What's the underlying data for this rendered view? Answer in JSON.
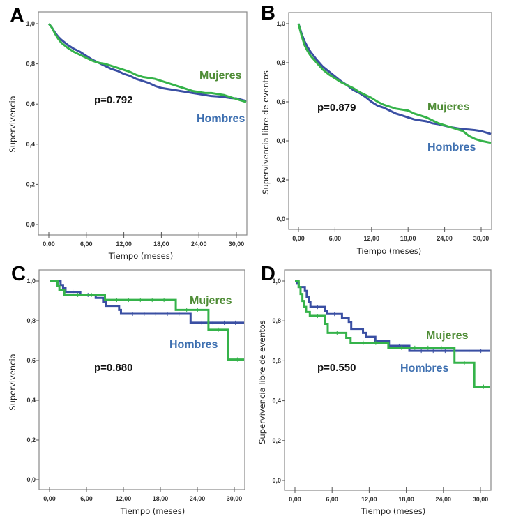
{
  "colors": {
    "hombres_line": "#3a4fa3",
    "mujeres_line": "#35b34a",
    "hombres_label": "#3d6fb0",
    "mujeres_label": "#4e8c35"
  },
  "chart_data": [
    {
      "panel": "A",
      "type": "line",
      "xlabel": "Tiempo (meses)",
      "ylabel": "Supervivencia",
      "xlim": [
        -1.5,
        32
      ],
      "ylim": [
        0,
        1.0
      ],
      "xticks": [
        "0,00",
        "6,00",
        "12,00",
        "18,00",
        "24,00",
        "30,00"
      ],
      "xtick_values": [
        0,
        6,
        12,
        18,
        24,
        30
      ],
      "yticks": [
        "0,0",
        "0,2",
        "0,4",
        "0,6",
        "0,8",
        "1,0"
      ],
      "ytick_values": [
        0,
        0.2,
        0.4,
        0.6,
        0.8,
        1.0
      ],
      "annotation": "p=0.792",
      "step": false,
      "series": [
        {
          "name": "Hombres",
          "x": [
            0,
            0.5,
            1,
            1.5,
            2,
            3,
            4,
            5,
            6,
            7,
            8,
            9,
            10,
            11,
            12,
            13,
            14,
            15,
            16,
            17,
            18,
            19,
            20,
            21,
            22,
            23,
            24,
            25,
            26,
            27,
            28,
            29,
            30,
            32
          ],
          "y": [
            1.0,
            0.98,
            0.955,
            0.935,
            0.92,
            0.895,
            0.875,
            0.86,
            0.84,
            0.82,
            0.805,
            0.79,
            0.775,
            0.765,
            0.75,
            0.74,
            0.725,
            0.715,
            0.705,
            0.69,
            0.68,
            0.675,
            0.67,
            0.665,
            0.66,
            0.655,
            0.65,
            0.645,
            0.64,
            0.638,
            0.635,
            0.63,
            0.628,
            0.615
          ]
        },
        {
          "name": "Mujeres",
          "x": [
            0,
            0.5,
            1,
            1.5,
            2,
            3,
            4,
            5,
            6,
            7,
            8,
            9,
            10,
            11,
            12,
            13,
            14,
            15,
            16,
            17,
            18,
            19,
            20,
            21,
            22,
            23,
            24,
            25,
            26,
            27,
            28,
            29,
            30,
            32
          ],
          "y": [
            1.0,
            0.98,
            0.95,
            0.925,
            0.905,
            0.88,
            0.86,
            0.845,
            0.83,
            0.815,
            0.805,
            0.8,
            0.79,
            0.78,
            0.77,
            0.76,
            0.745,
            0.735,
            0.73,
            0.725,
            0.715,
            0.705,
            0.695,
            0.685,
            0.675,
            0.665,
            0.66,
            0.655,
            0.655,
            0.65,
            0.645,
            0.635,
            0.625,
            0.61
          ]
        }
      ]
    },
    {
      "panel": "B",
      "type": "line",
      "xlabel": "Tiempo (meses)",
      "ylabel": "Supervivencia libre de eventos",
      "xlim": [
        -1.5,
        32
      ],
      "ylim": [
        0,
        1.0
      ],
      "xticks": [
        "0,00",
        "6,00",
        "12,00",
        "18,00",
        "24,00",
        "30,00"
      ],
      "xtick_values": [
        0,
        6,
        12,
        18,
        24,
        30
      ],
      "yticks": [
        "0,0",
        "0,2",
        "0,4",
        "0,6",
        "0,8",
        "1,0"
      ],
      "ytick_values": [
        0,
        0.2,
        0.4,
        0.6,
        0.8,
        1.0
      ],
      "annotation": "p=0.879",
      "step": false,
      "series": [
        {
          "name": "Hombres",
          "x": [
            0,
            0.5,
            1,
            1.5,
            2,
            3,
            4,
            5,
            6,
            7,
            8,
            9,
            10,
            11,
            12,
            13,
            14,
            15,
            16,
            17,
            18,
            19,
            20,
            21,
            22,
            23,
            24,
            25,
            26,
            27,
            28,
            29,
            30,
            32
          ],
          "y": [
            1.0,
            0.95,
            0.91,
            0.88,
            0.855,
            0.815,
            0.78,
            0.755,
            0.73,
            0.705,
            0.685,
            0.66,
            0.645,
            0.625,
            0.6,
            0.58,
            0.57,
            0.555,
            0.54,
            0.53,
            0.52,
            0.51,
            0.505,
            0.5,
            0.49,
            0.485,
            0.478,
            0.47,
            0.465,
            0.46,
            0.458,
            0.455,
            0.45,
            0.435
          ]
        },
        {
          "name": "Mujeres",
          "x": [
            0,
            0.5,
            1,
            1.5,
            2,
            3,
            4,
            5,
            6,
            7,
            8,
            9,
            10,
            11,
            12,
            13,
            14,
            15,
            16,
            17,
            18,
            19,
            20,
            21,
            22,
            23,
            24,
            25,
            26,
            27,
            28,
            29,
            30,
            32
          ],
          "y": [
            1.0,
            0.94,
            0.89,
            0.86,
            0.835,
            0.8,
            0.765,
            0.74,
            0.72,
            0.7,
            0.685,
            0.67,
            0.65,
            0.635,
            0.62,
            0.6,
            0.585,
            0.575,
            0.565,
            0.56,
            0.555,
            0.54,
            0.53,
            0.52,
            0.505,
            0.49,
            0.48,
            0.47,
            0.46,
            0.45,
            0.425,
            0.41,
            0.4,
            0.39
          ]
        }
      ]
    },
    {
      "panel": "C",
      "type": "line",
      "xlabel": "Tiempo (meses)",
      "ylabel": "Supervivencia",
      "xlim": [
        -1.5,
        32
      ],
      "ylim": [
        0,
        1.0
      ],
      "xticks": [
        "0,00",
        "6,00",
        "12,00",
        "18,00",
        "24,00",
        "30,00"
      ],
      "xtick_values": [
        0,
        6,
        12,
        18,
        24,
        30
      ],
      "yticks": [
        "0,0",
        "0,2",
        "0,4",
        "0,6",
        "0,8",
        "1,0"
      ],
      "ytick_values": [
        0,
        0.2,
        0.4,
        0.6,
        0.8,
        1.0
      ],
      "annotation": "p=0.880",
      "step": true,
      "series": [
        {
          "name": "Hombres",
          "x": [
            0,
            1.8,
            2.2,
            2.6,
            5.0,
            7.5,
            8.7,
            9.2,
            11.3,
            11.6,
            22.9,
            32
          ],
          "y": [
            1.0,
            0.98,
            0.965,
            0.945,
            0.93,
            0.915,
            0.895,
            0.875,
            0.855,
            0.835,
            0.79,
            0.79
          ]
        },
        {
          "name": "Mujeres",
          "x": [
            0,
            1.3,
            1.6,
            2.4,
            9.0,
            20.5,
            25.8,
            29.0,
            32
          ],
          "y": [
            1.0,
            0.975,
            0.955,
            0.93,
            0.905,
            0.855,
            0.755,
            0.605,
            0.605
          ]
        }
      ]
    },
    {
      "panel": "D",
      "type": "line",
      "xlabel": "Tiempo (meses)",
      "ylabel": "Supervivencia libre de eventos",
      "xlim": [
        -1.5,
        32
      ],
      "ylim": [
        0,
        1.0
      ],
      "xticks": [
        "0,00",
        "6,00",
        "12,00",
        "18,00",
        "24,00",
        "30,00"
      ],
      "xtick_values": [
        0,
        6,
        12,
        18,
        24,
        30
      ],
      "yticks": [
        "0,0",
        "0,2",
        "0,4",
        "0,6",
        "0,8",
        "1,0"
      ],
      "ytick_values": [
        0,
        0.2,
        0.4,
        0.6,
        0.8,
        1.0
      ],
      "annotation": "p=0.550",
      "step": true,
      "series": [
        {
          "name": "Hombres",
          "x": [
            0,
            0.3,
            0.6,
            1.6,
            1.9,
            2.2,
            2.5,
            4.8,
            5.2,
            7.6,
            8.7,
            9.1,
            11.0,
            11.5,
            13.0,
            15.2,
            18.5,
            32
          ],
          "y": [
            1.0,
            0.99,
            0.97,
            0.95,
            0.92,
            0.895,
            0.87,
            0.85,
            0.835,
            0.815,
            0.795,
            0.76,
            0.74,
            0.72,
            0.7,
            0.675,
            0.65,
            0.65
          ]
        },
        {
          "name": "Mujeres",
          "x": [
            0,
            0.6,
            0.9,
            1.2,
            1.5,
            1.8,
            2.4,
            4.9,
            5.3,
            8.3,
            9.0,
            15.1,
            25.8,
            29.0,
            32
          ],
          "y": [
            1.0,
            0.97,
            0.935,
            0.9,
            0.87,
            0.845,
            0.825,
            0.785,
            0.74,
            0.715,
            0.69,
            0.665,
            0.59,
            0.47,
            0.47
          ]
        }
      ]
    }
  ],
  "panels": [
    {
      "letter": "A",
      "xlabel": "Tiempo (meses)",
      "ylabel": "Supervivencia",
      "pvalue": "p=0.792",
      "mujeres": "Mujeres",
      "hombres": "Hombres"
    },
    {
      "letter": "B",
      "xlabel": "Tiempo (meses)",
      "ylabel": "Supervivencia libre de eventos",
      "pvalue": "p=0.879",
      "mujeres": "Mujeres",
      "hombres": "Hombres"
    },
    {
      "letter": "C",
      "xlabel": "Tiempo (meses)",
      "ylabel": "Supervivencia",
      "pvalue": "p=0.880",
      "mujeres": "Mujeres",
      "hombres": "Hombres"
    },
    {
      "letter": "D",
      "xlabel": "Tiempo (meses)",
      "ylabel": "Supervivencia libre de eventos",
      "pvalue": "p=0.550",
      "mujeres": "Mujeres",
      "hombres": "Hombres"
    }
  ]
}
